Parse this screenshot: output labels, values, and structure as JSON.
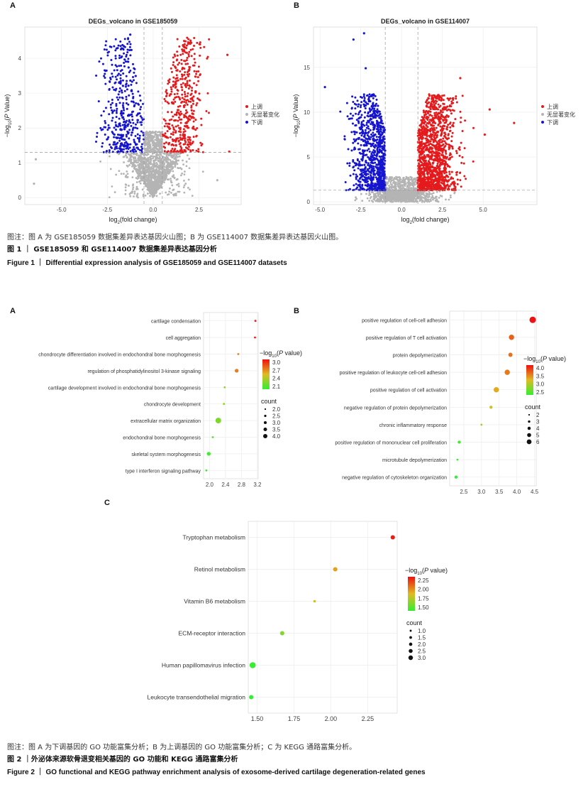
{
  "figure1": {
    "panel_a_label": "A",
    "panel_b_label": "B",
    "caption_note": "图注：图 A 为 GSE185059 数据集差异表达基因火山图；B 为 GSE114007 数据集差异表达基因火山图。",
    "caption_cn": "图 1 ｜ GSE185059 和 GSE114007 数据集差异表达基因分析",
    "caption_en": "Figure 1 ｜ Differential expression analysis of GSE185059 and GSE114007 datasets"
  },
  "figure2": {
    "panel_a_label": "A",
    "panel_b_label": "B",
    "panel_c_label": "C",
    "caption_note": "图注：图 A 为下调基因的 GO 功能富集分析；B 为上调基因的 GO 功能富集分析；C 为 KEGG 通路富集分析。",
    "caption_cn": "图 2 ｜外泌体来源软骨退变相关基因的 GO 功能和 KEGG 通路富集分析",
    "caption_en": "Figure 2 ｜ GO functional and KEGG pathway enrichment analysis of exosome-derived cartilage degeneration-related genes"
  },
  "colors": {
    "up": "#e41a1c",
    "down": "#1515d0",
    "ns": "#b4b4b4",
    "low": "#33ee33",
    "high": "#ee1111"
  },
  "chart_data": [
    {
      "id": "volcanoA",
      "type": "scatter",
      "title": "DEGs_volcano in GSE185059",
      "xlabel": "log2(fold change)",
      "ylabel": "-log10(P Value)",
      "xlim": [
        -7,
        4.8
      ],
      "ylim": [
        -0.2,
        4.9
      ],
      "xticks": [
        -5.0,
        -2.5,
        0.0,
        2.5
      ],
      "xtick_labels": [
        "-5.0",
        "-2.5",
        "0.0",
        "2.5"
      ],
      "yticks": [
        0,
        1,
        2,
        3,
        4
      ],
      "ytick_labels": [
        "0",
        "1",
        "2",
        "3",
        "4"
      ],
      "thresholds": {
        "fc": [
          -0.5,
          0.5
        ],
        "p": 1.3
      },
      "legend": [
        "上调",
        "无显著变化",
        "下调"
      ],
      "legend_position": "right",
      "distribution": {
        "down_count": 420,
        "up_count": 460,
        "ns_count": 1200,
        "down_center": -1.65,
        "up_center": 1.6,
        "spread": 0.55,
        "max_y": 4.6
      },
      "outliers": [
        {
          "x": -1.25,
          "y": 4.68,
          "cls": "down"
        },
        {
          "x": -1.6,
          "y": 4.35,
          "cls": "down"
        },
        {
          "x": 4.05,
          "y": 4.1,
          "cls": "up"
        },
        {
          "x": 4.15,
          "y": 1.32,
          "cls": "up"
        },
        {
          "x": -6.5,
          "y": 0.4,
          "cls": "ns"
        },
        {
          "x": -6.4,
          "y": 1.1,
          "cls": "ns"
        },
        {
          "x": 3.5,
          "y": 0.5,
          "cls": "ns"
        }
      ]
    },
    {
      "id": "volcanoB",
      "type": "scatter",
      "title": "DEGs_volcano in GSE114007",
      "xlabel": "log2(fold change)",
      "ylabel": "-log10(P Value)",
      "xlim": [
        -5.4,
        8.3
      ],
      "ylim": [
        -0.3,
        19.5
      ],
      "xticks": [
        -5.0,
        -2.5,
        0.0,
        2.5,
        5.0
      ],
      "xtick_labels": [
        "-5.0",
        "-2.5",
        "0.0",
        "2.5",
        "5.0"
      ],
      "yticks": [
        0,
        5,
        10,
        15
      ],
      "ytick_labels": [
        "0",
        "5",
        "10",
        "15"
      ],
      "thresholds": {
        "fc": [
          -1,
          1
        ],
        "p": 1.3
      },
      "legend": [
        "上调",
        "无显著变化",
        "下调"
      ],
      "legend_position": "right",
      "distribution": {
        "down_count": 900,
        "up_count": 1300,
        "ns_count": 900,
        "down_center": -1.7,
        "up_center": 1.9,
        "spread": 0.7,
        "max_y": 12
      },
      "outliers": [
        {
          "x": -2.3,
          "y": 18.8,
          "cls": "down"
        },
        {
          "x": -2.95,
          "y": 18.1,
          "cls": "down"
        },
        {
          "x": -2.2,
          "y": 14.9,
          "cls": "down"
        },
        {
          "x": -4.7,
          "y": 12.8,
          "cls": "down"
        },
        {
          "x": 3.6,
          "y": 13.8,
          "cls": "up"
        },
        {
          "x": 6.9,
          "y": 8.8,
          "cls": "up"
        },
        {
          "x": 5.4,
          "y": 10.3,
          "cls": "up"
        },
        {
          "x": 5.1,
          "y": 7.5,
          "cls": "up"
        }
      ]
    },
    {
      "id": "dotA",
      "type": "scatter",
      "subtype": "dot",
      "xlim": [
        1.85,
        3.22
      ],
      "xticks": [
        2.0,
        2.4,
        2.8,
        3.2
      ],
      "xtick_labels": [
        "2.0",
        "2.4",
        "2.8",
        "3.2"
      ],
      "categories": [
        "cartilage condensation",
        "cell aggregation",
        "chondrocyte differentiation involved in endochondral bone morphogenesis",
        "regulation of phosphatidylinositol 3-kinase signaling",
        "cartilage development involved in endochondral bone morphogenesis",
        "chondrocyte development",
        "extracellular matrix organization",
        "endochondral bone morphogenesis",
        "skeletal system morphogenesis",
        "type I interferon signaling pathway"
      ],
      "x": [
        3.15,
        3.14,
        2.72,
        2.68,
        2.38,
        2.36,
        2.22,
        2.08,
        1.98,
        1.92
      ],
      "count": [
        2,
        2,
        2,
        3,
        2,
        2,
        4,
        2,
        3,
        2
      ],
      "neglog10p": [
        3.05,
        3.05,
        2.72,
        2.72,
        2.3,
        2.25,
        2.2,
        2.05,
        2.0,
        1.95
      ],
      "color_legend_title": "−log10(P value)",
      "color_ticks": [
        "3.0",
        "2.7",
        "2.4",
        "2.1"
      ],
      "color_range": [
        1.95,
        3.1
      ],
      "size_legend_title": "count",
      "size_ticks": [
        "2.0",
        "2.5",
        "3.0",
        "3.5",
        "4.0"
      ],
      "size_range": [
        2,
        4
      ]
    },
    {
      "id": "dotB",
      "type": "scatter",
      "subtype": "dot",
      "xlim": [
        2.1,
        4.55
      ],
      "xticks": [
        2.5,
        3.0,
        3.5,
        4.0,
        4.5
      ],
      "xtick_labels": [
        "2.5",
        "3.0",
        "3.5",
        "4.0",
        "4.5"
      ],
      "categories": [
        "positive regulation of cell-cell adhesion",
        "positive regulation of T cell activation",
        "protein depolymerization",
        "positive regulation of leukocyte cell-cell adhesion",
        "positive regulation of cell activation",
        "negative regulation of protein depolymerization",
        "chronic inflammatory response",
        "positive regulation of mononuclear cell proliferation",
        "microtubule depolymerization",
        "negative regulation of cytoskeleton organization"
      ],
      "x": [
        4.45,
        3.85,
        3.82,
        3.73,
        3.42,
        3.27,
        3.0,
        2.37,
        2.32,
        2.28
      ],
      "count": [
        6,
        5,
        4,
        5,
        5,
        3,
        2,
        3,
        2,
        3
      ],
      "neglog10p": [
        4.4,
        3.9,
        3.8,
        3.75,
        3.45,
        3.25,
        2.95,
        2.4,
        2.35,
        2.3
      ],
      "color_legend_title": "−log10(P value)",
      "color_ticks": [
        "4.0",
        "3.5",
        "3.0",
        "2.5"
      ],
      "color_range": [
        2.3,
        4.4
      ],
      "size_legend_title": "count",
      "size_ticks": [
        "2",
        "3",
        "4",
        "5",
        "6"
      ],
      "size_range": [
        2,
        6
      ]
    },
    {
      "id": "dotC",
      "type": "scatter",
      "subtype": "dot",
      "xlim": [
        1.44,
        2.45
      ],
      "xticks": [
        1.5,
        1.75,
        2.0,
        2.25
      ],
      "xtick_labels": [
        "1.50",
        "1.75",
        "2.00",
        "2.25"
      ],
      "categories": [
        "Tryptophan metabolism",
        "Retinol metabolism",
        "Vitamin B6 metabolism",
        "ECM-receptor interaction",
        "Human papillomavirus infection",
        "Leukocyte transendothelial migration"
      ],
      "x": [
        2.42,
        2.03,
        1.89,
        1.67,
        1.47,
        1.46
      ],
      "count": [
        2,
        2,
        1,
        2,
        3,
        2
      ],
      "neglog10p": [
        2.42,
        2.03,
        1.89,
        1.67,
        1.47,
        1.46
      ],
      "color_legend_title": "−log10(P value)",
      "color_ticks": [
        "2.25",
        "2.00",
        "1.75",
        "1.50"
      ],
      "color_range": [
        1.45,
        2.45
      ],
      "size_legend_title": "count",
      "size_ticks": [
        "1.0",
        "1.5",
        "2.0",
        "2.5",
        "3.0"
      ],
      "size_range": [
        1,
        3
      ]
    }
  ]
}
